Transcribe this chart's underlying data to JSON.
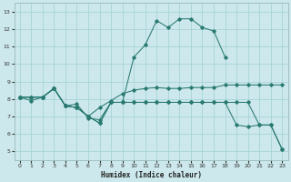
{
  "xlabel": "Humidex (Indice chaleur)",
  "bg_color": "#cce8ec",
  "grid_color": "#a8d4d8",
  "line_color": "#2a7a72",
  "xlim": [
    -0.5,
    23.5
  ],
  "ylim": [
    4.5,
    13.5
  ],
  "xticks": [
    0,
    1,
    2,
    3,
    4,
    5,
    6,
    7,
    8,
    9,
    10,
    11,
    12,
    13,
    14,
    15,
    16,
    17,
    18,
    19,
    20,
    21,
    22,
    23
  ],
  "yticks": [
    5,
    6,
    7,
    8,
    9,
    10,
    11,
    12,
    13
  ],
  "series1_x": [
    0,
    1,
    2,
    3,
    4,
    5,
    6,
    7,
    8,
    9,
    10,
    11,
    12,
    13,
    14,
    15,
    16,
    17,
    18,
    19,
    20,
    21,
    22,
    23
  ],
  "series1_y": [
    8.1,
    7.9,
    8.1,
    8.6,
    7.6,
    7.7,
    6.9,
    6.8,
    7.8,
    7.8,
    7.8,
    7.8,
    7.8,
    7.8,
    7.8,
    7.8,
    7.8,
    7.8,
    7.8,
    6.5,
    6.4,
    6.5,
    6.5,
    5.1
  ],
  "series2_x": [
    0,
    1,
    2,
    3,
    4,
    5,
    6,
    7,
    8,
    9,
    10,
    11,
    12,
    13,
    14,
    15,
    16,
    17,
    18,
    19,
    20,
    21,
    22,
    23
  ],
  "series2_y": [
    8.1,
    8.1,
    8.1,
    8.6,
    7.6,
    7.5,
    7.0,
    7.5,
    7.9,
    8.3,
    8.5,
    8.6,
    8.65,
    8.6,
    8.6,
    8.65,
    8.65,
    8.65,
    8.8,
    8.8,
    8.8,
    8.8,
    8.8,
    8.8
  ],
  "series3_x": [
    0,
    1,
    2,
    3,
    4,
    5,
    6,
    7,
    8,
    9,
    10,
    11,
    12,
    13,
    14,
    15,
    16,
    17,
    18
  ],
  "series3_y": [
    8.1,
    8.1,
    8.1,
    8.6,
    7.6,
    7.5,
    7.0,
    6.6,
    7.8,
    7.8,
    10.4,
    11.1,
    12.5,
    12.1,
    12.6,
    12.6,
    12.1,
    11.9,
    10.4
  ],
  "series4_x": [
    0,
    1,
    2,
    3,
    4,
    5,
    6,
    7,
    8,
    9,
    10,
    11,
    12,
    13,
    14,
    15,
    16,
    17,
    18,
    19,
    20,
    21,
    22,
    23
  ],
  "series4_y": [
    8.1,
    8.1,
    8.1,
    8.6,
    7.6,
    7.5,
    7.0,
    6.6,
    7.8,
    7.8,
    7.8,
    7.8,
    7.8,
    7.8,
    7.8,
    7.8,
    7.8,
    7.8,
    7.8,
    7.8,
    7.8,
    6.5,
    6.5,
    5.1
  ]
}
